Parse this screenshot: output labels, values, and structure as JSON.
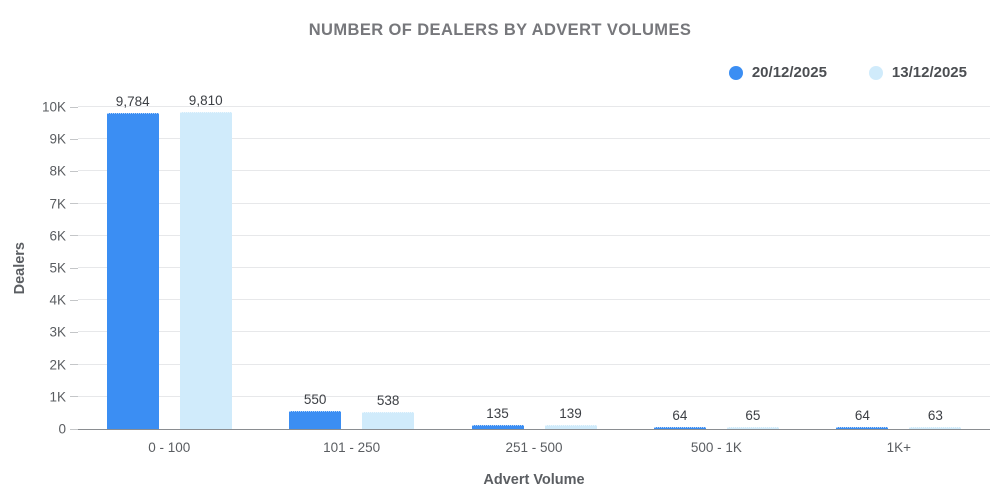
{
  "chart_data": {
    "type": "bar",
    "title": "NUMBER OF DEALERS BY ADVERT VOLUMES",
    "xlabel": "Advert Volume",
    "ylabel": "Dealers",
    "categories": [
      "0 - 100",
      "101 - 250",
      "251 - 500",
      "500 - 1K",
      "1K+"
    ],
    "series": [
      {
        "name": "20/12/2025",
        "color": "#3b8ef3",
        "values": [
          9784,
          550,
          135,
          64,
          64
        ],
        "value_labels": [
          "9,784",
          "550",
          "135",
          "64",
          "64"
        ]
      },
      {
        "name": "13/12/2025",
        "color": "#d0ebfb",
        "values": [
          9810,
          538,
          139,
          65,
          63
        ],
        "value_labels": [
          "9,810",
          "538",
          "139",
          "65",
          "63"
        ]
      }
    ],
    "ylim": [
      0,
      10000
    ],
    "y_ticks": [
      {
        "value": 0,
        "label": "0"
      },
      {
        "value": 1000,
        "label": "1K"
      },
      {
        "value": 2000,
        "label": "2K"
      },
      {
        "value": 3000,
        "label": "3K"
      },
      {
        "value": 4000,
        "label": "4K"
      },
      {
        "value": 5000,
        "label": "5K"
      },
      {
        "value": 6000,
        "label": "6K"
      },
      {
        "value": 7000,
        "label": "7K"
      },
      {
        "value": 8000,
        "label": "8K"
      },
      {
        "value": 9000,
        "label": "9K"
      },
      {
        "value": 10000,
        "label": "10K"
      }
    ],
    "grid": "horizontal",
    "legend_position": "top-right",
    "colors": {
      "series_primary": "#3b8ef3",
      "series_secondary": "#d0ebfb",
      "grid_line": "#e7e8ea",
      "zero_line": "#8a8d91",
      "title_text": "#76777b",
      "tick_text": "#5a5d61",
      "value_text": "#3c3f44",
      "axis_title_text": "#5b5e62",
      "legend_text": "#4b4e52"
    }
  }
}
